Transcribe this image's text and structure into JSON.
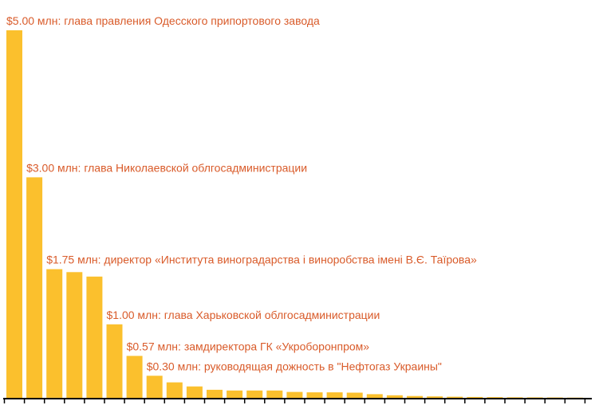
{
  "chart_data": {
    "type": "bar",
    "title": "",
    "xlabel": "",
    "ylabel": "",
    "ylim": [
      0,
      5.0
    ],
    "grid": false,
    "legend": false,
    "colors": {
      "bar": "#fbc02d",
      "annotation": "#d95b2a",
      "axis": "#000000"
    },
    "values": [
      5.0,
      3.0,
      1.75,
      1.71,
      1.65,
      1.0,
      0.57,
      0.3,
      0.21,
      0.155,
      0.11,
      0.1,
      0.1,
      0.1,
      0.08,
      0.075,
      0.075,
      0.07,
      0.05,
      0.035,
      0.025,
      0.02,
      0.015,
      0.012,
      0.01,
      0.008,
      0.006,
      0.005,
      0.003
    ],
    "annotations": [
      {
        "index": 0,
        "text": "$5.00 млн: глава правления Одесского припортового завода"
      },
      {
        "index": 1,
        "text": "$3.00 млн: глава Николаевской облгосадминистрации"
      },
      {
        "index": 2,
        "text": "$1.75 млн: директор «Института виноградарства і виноробства імені В.Є. Таїрова»"
      },
      {
        "index": 5,
        "text": "$1.00 млн: глава Харьковской облгосадминистрации"
      },
      {
        "index": 6,
        "text": "$0.57 млн: замдиректора ГК «Укроборонпром»"
      },
      {
        "index": 7,
        "text": "$0.30 млн: руководящая дожность в \"Нефтогаз Украины\""
      }
    ]
  }
}
